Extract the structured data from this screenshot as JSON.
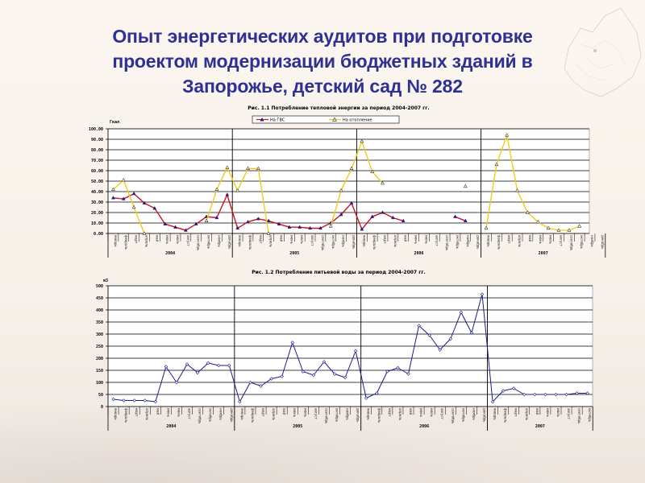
{
  "slide": {
    "title_lines": [
      "Опыт энергетических аудитов при подготовке",
      "проектом модернизации бюджетных зданий в",
      "Запорожье, детский сад № 282"
    ],
    "title_color": "#2e3192"
  },
  "months": [
    "январь",
    "февраль",
    "март",
    "апрель",
    "май",
    "июнь",
    "июль",
    "август",
    "сентябрь",
    "октябрь",
    "ноябрь",
    "декабрь"
  ],
  "chart_data": [
    {
      "type": "line",
      "title": "Рис. 1.1 Потребление тепловой энергии за период 2004-2007 гг.",
      "ylabel": "Гкал",
      "xlabel": "",
      "ylim": [
        0,
        100
      ],
      "yticks": [
        "0.00",
        "10.00",
        "20.00",
        "30.00",
        "40.00",
        "50.00",
        "60.00",
        "70.00",
        "80.00",
        "90.00",
        "100.00"
      ],
      "grid": true,
      "legend_position": "top",
      "years": [
        "2004",
        "2005",
        "2006",
        "2007"
      ],
      "x_count": 48,
      "series": [
        {
          "name": "На ГВС",
          "color": "#cc1122",
          "marker_color": "#2a1a80",
          "values": [
            34,
            33,
            38,
            29,
            24,
            9,
            6,
            3,
            9,
            16,
            15,
            37,
            5,
            11,
            14,
            12,
            9,
            6,
            6,
            5,
            5,
            10,
            18,
            29,
            4,
            16,
            20,
            15,
            12,
            null,
            null,
            null,
            null,
            16,
            12,
            null,
            null,
            null,
            null,
            null,
            null,
            null,
            null,
            null,
            null,
            null,
            null,
            null
          ]
        },
        {
          "name": "На отопление",
          "color": "#f2cc1a",
          "marker_color": "#000000",
          "values": [
            42,
            51,
            25,
            0,
            null,
            null,
            null,
            null,
            null,
            12,
            42,
            63,
            41,
            62,
            62,
            0,
            null,
            null,
            null,
            null,
            null,
            7,
            41,
            62,
            88,
            59,
            48,
            null,
            null,
            null,
            null,
            null,
            null,
            null,
            45,
            null,
            5,
            66,
            94,
            41,
            20,
            11,
            5,
            3,
            3,
            7,
            null,
            null
          ]
        }
      ]
    },
    {
      "type": "line",
      "title": "Рис. 1.2 Потребление питьевой воды за период 2004-2007 гг.",
      "ylabel": "м3",
      "xlabel": "",
      "ylim": [
        0,
        500
      ],
      "yticks": [
        "0",
        "50",
        "100",
        "150",
        "200",
        "250",
        "300",
        "350",
        "400",
        "450",
        "500"
      ],
      "grid": true,
      "legend_position": "none",
      "years": [
        "2004",
        "2005",
        "2006",
        "2007"
      ],
      "x_count": 46,
      "series": [
        {
          "name": "Потребление питьевой воды",
          "color": "#1a1a8c",
          "marker_color": "#1a1a8c",
          "values": [
            30,
            25,
            25,
            25,
            20,
            165,
            100,
            175,
            140,
            180,
            170,
            170,
            20,
            100,
            85,
            115,
            125,
            265,
            145,
            130,
            185,
            135,
            120,
            230,
            35,
            55,
            145,
            160,
            135,
            335,
            295,
            235,
            280,
            390,
            305,
            465,
            20,
            65,
            75,
            50,
            50,
            50,
            50,
            50,
            55,
            55
          ]
        }
      ]
    }
  ]
}
